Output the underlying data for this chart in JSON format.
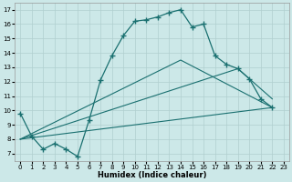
{
  "xlabel": "Humidex (Indice chaleur)",
  "ylabel": "",
  "bg_color": "#cce8e8",
  "line_color": "#1a7070",
  "grid_color": "#b0cfcf",
  "main_x": [
    0,
    1,
    2,
    3,
    4,
    5,
    6,
    7,
    8,
    9,
    10,
    11,
    12,
    13,
    14,
    15,
    16,
    17,
    18,
    19,
    20,
    21,
    22
  ],
  "main_y": [
    9.8,
    8.2,
    7.3,
    7.7,
    7.3,
    6.8,
    9.3,
    12.1,
    13.8,
    15.2,
    16.2,
    16.3,
    16.5,
    16.8,
    17.0,
    15.8,
    16.0,
    13.8,
    13.2,
    12.9,
    12.2,
    10.8,
    10.2
  ],
  "line1_x": [
    0,
    22
  ],
  "line1_y": [
    8.0,
    10.2
  ],
  "line2_x": [
    0,
    19,
    22
  ],
  "line2_y": [
    8.0,
    12.9,
    10.8
  ],
  "line3_x": [
    0,
    14,
    22
  ],
  "line3_y": [
    8.0,
    13.5,
    10.2
  ],
  "xlim": [
    -0.5,
    23.5
  ],
  "ylim": [
    6.5,
    17.5
  ],
  "yticks": [
    7,
    8,
    9,
    10,
    11,
    12,
    13,
    14,
    15,
    16,
    17
  ],
  "xticks": [
    0,
    1,
    2,
    3,
    4,
    5,
    6,
    7,
    8,
    9,
    10,
    11,
    12,
    13,
    14,
    15,
    16,
    17,
    18,
    19,
    20,
    21,
    22,
    23
  ]
}
